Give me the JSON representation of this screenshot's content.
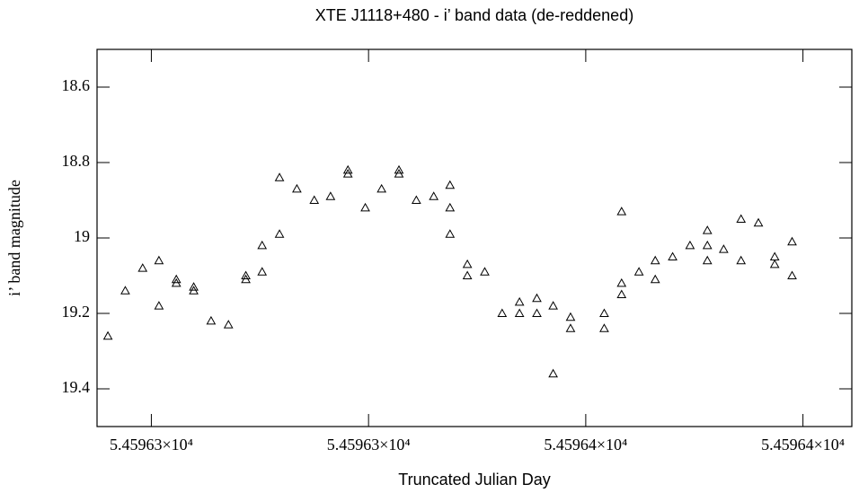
{
  "chart_data": {
    "type": "scatter",
    "title": "XTE J1118+480 - i’ band data (de-reddened)",
    "xlabel": "Truncated Julian Day",
    "ylabel": "i’ band magnitude",
    "marker": "triangle-open",
    "color": "#000000",
    "xlim": [
      54596.315,
      54596.3845
    ],
    "ylim": [
      19.5,
      18.5
    ],
    "xticks": [
      {
        "value": 54596.32,
        "label": "5.45963×10⁴"
      },
      {
        "value": 54596.34,
        "label": "5.45963×10⁴"
      },
      {
        "value": 54596.36,
        "label": "5.45964×10⁴"
      },
      {
        "value": 54596.38,
        "label": "5.45964×10⁴"
      }
    ],
    "yticks": [
      18.6,
      18.8,
      19,
      19.2,
      19.4
    ],
    "x": [
      54596.316,
      54596.3176,
      54596.3192,
      54596.3207,
      54596.3207,
      54596.3223,
      54596.3223,
      54596.3239,
      54596.3239,
      54596.3255,
      54596.3271,
      54596.3287,
      54596.3287,
      54596.3302,
      54596.3302,
      54596.3318,
      54596.3318,
      54596.3334,
      54596.335,
      54596.3365,
      54596.3381,
      54596.3381,
      54596.3397,
      54596.3412,
      54596.3428,
      54596.3428,
      54596.3444,
      54596.346,
      54596.3475,
      54596.3475,
      54596.3475,
      54596.3491,
      54596.3491,
      54596.3507,
      54596.3523,
      54596.3539,
      54596.3539,
      54596.3555,
      54596.3555,
      54596.357,
      54596.357,
      54596.3586,
      54596.3586,
      54596.3617,
      54596.3617,
      54596.3633,
      54596.3633,
      54596.3633,
      54596.3649,
      54596.3664,
      54596.3664,
      54596.368,
      54596.3696,
      54596.3712,
      54596.3712,
      54596.3712,
      54596.3727,
      54596.3743,
      54596.3743,
      54596.3759,
      54596.3774,
      54596.3774,
      54596.379,
      54596.379
    ],
    "values": [
      19.26,
      19.14,
      19.08,
      19.06,
      19.18,
      19.11,
      19.12,
      19.13,
      19.14,
      19.22,
      19.23,
      19.1,
      19.11,
      19.02,
      19.09,
      18.84,
      18.99,
      18.87,
      18.9,
      18.89,
      18.82,
      18.83,
      18.92,
      18.87,
      18.82,
      18.83,
      18.9,
      18.89,
      18.86,
      18.92,
      18.99,
      19.07,
      19.1,
      19.09,
      19.2,
      19.17,
      19.2,
      19.16,
      19.2,
      19.18,
      19.36,
      19.21,
      19.24,
      19.2,
      19.24,
      18.93,
      19.12,
      19.15,
      19.09,
      19.06,
      19.11,
      19.05,
      19.02,
      18.98,
      19.02,
      19.06,
      19.03,
      18.95,
      19.06,
      18.96,
      19.05,
      19.07,
      19.01,
      19.1
    ]
  }
}
